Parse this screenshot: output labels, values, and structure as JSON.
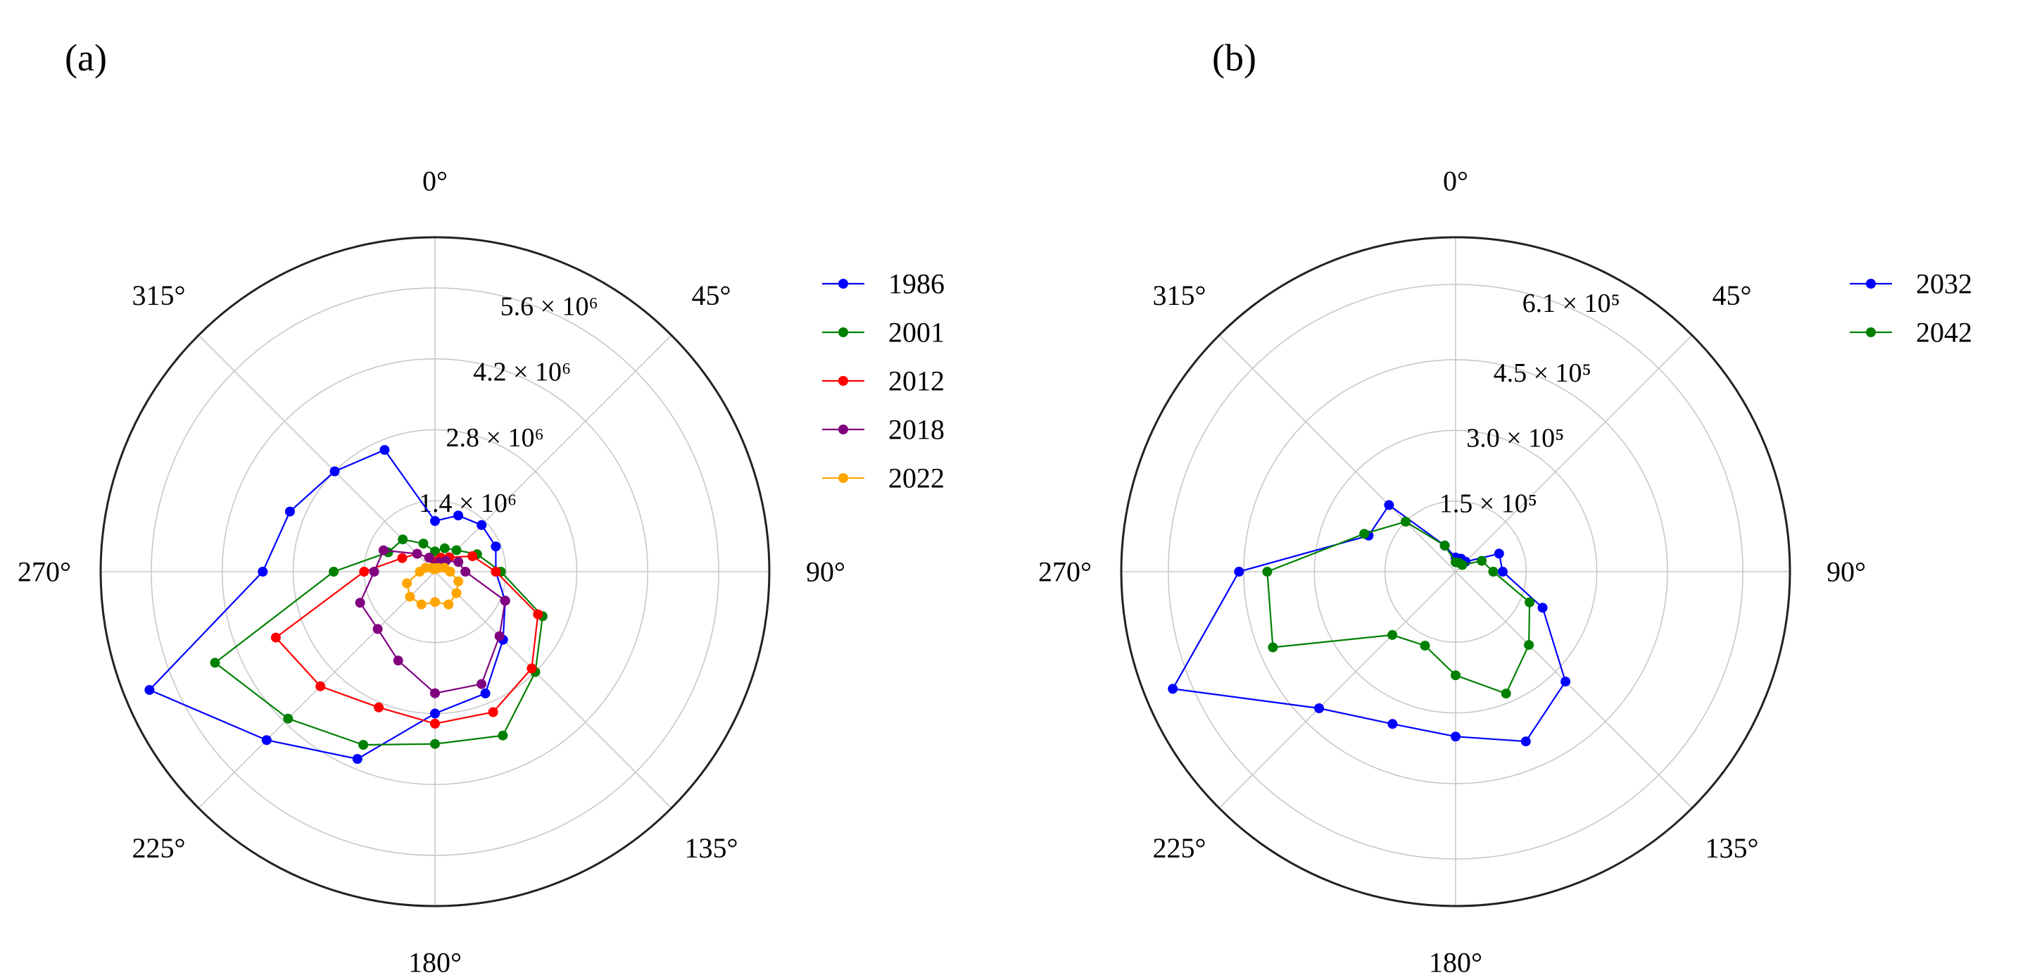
{
  "chart_data": [
    {
      "type": "polar-line",
      "panel_label": "(a)",
      "title": "",
      "angle_labels": [
        "0°",
        "45°",
        "90°",
        "135°",
        "180°",
        "225°",
        "270°",
        "315°"
      ],
      "angle_values": [
        0,
        45,
        90,
        135,
        180,
        225,
        270,
        315
      ],
      "radial_ticks": [
        {
          "value": 1.4,
          "label": "1.4 × 10⁶"
        },
        {
          "value": 2.8,
          "label": "2.8 × 10⁶"
        },
        {
          "value": 4.2,
          "label": "4.2 × 10⁶"
        },
        {
          "value": 5.6,
          "label": "5.6 × 10⁶"
        }
      ],
      "radial_unit": "× 10⁶",
      "rlim": [
        0,
        6.6
      ],
      "direction": "clockwise",
      "zero_location": "top",
      "legend_position": "right",
      "series": [
        {
          "name": "1986",
          "color": "#0000ff",
          "points": [
            [
              0,
              1.0
            ],
            [
              22.5,
              1.2
            ],
            [
              45,
              1.3
            ],
            [
              67.5,
              1.3
            ],
            [
              90,
              1.2
            ],
            [
              112.5,
              1.5
            ],
            [
              135,
              1.9
            ],
            [
              157.5,
              2.6
            ],
            [
              180,
              2.8
            ],
            [
              202.5,
              4.0
            ],
            [
              225,
              4.7
            ],
            [
              247.5,
              6.1
            ],
            [
              270,
              3.4
            ],
            [
              292.5,
              3.1
            ],
            [
              315,
              2.8
            ],
            [
              337.5,
              2.6
            ]
          ]
        },
        {
          "name": "2001",
          "color": "#008000",
          "points": [
            [
              0,
              0.4
            ],
            [
              22.5,
              0.5
            ],
            [
              45,
              0.6
            ],
            [
              67.5,
              0.9
            ],
            [
              90,
              1.3
            ],
            [
              112.5,
              2.3
            ],
            [
              135,
              2.8
            ],
            [
              157.5,
              3.5
            ],
            [
              180,
              3.4
            ],
            [
              202.5,
              3.7
            ],
            [
              225,
              4.1
            ],
            [
              247.5,
              4.7
            ],
            [
              270,
              2.0
            ],
            [
              292.5,
              1.0
            ],
            [
              315,
              0.9
            ],
            [
              337.5,
              0.6
            ]
          ]
        },
        {
          "name": "2012",
          "color": "#ff0000",
          "points": [
            [
              0,
              0.2
            ],
            [
              22.5,
              0.3
            ],
            [
              45,
              0.4
            ],
            [
              67.5,
              0.8
            ],
            [
              90,
              1.2
            ],
            [
              112.5,
              2.2
            ],
            [
              135,
              2.7
            ],
            [
              157.5,
              3.0
            ],
            [
              180,
              3.0
            ],
            [
              202.5,
              2.9
            ],
            [
              225,
              3.2
            ],
            [
              247.5,
              3.4
            ],
            [
              270,
              1.4
            ],
            [
              292.5,
              0.7
            ],
            [
              315,
              0.5
            ],
            [
              337.5,
              0.3
            ]
          ]
        },
        {
          "name": "2018",
          "color": "#800080",
          "points": [
            [
              0,
              0.1
            ],
            [
              22.5,
              0.2
            ],
            [
              45,
              0.3
            ],
            [
              67.5,
              0.5
            ],
            [
              90,
              0.6
            ],
            [
              112.5,
              1.5
            ],
            [
              135,
              1.8
            ],
            [
              157.5,
              2.4
            ],
            [
              180,
              2.4
            ],
            [
              202.5,
              1.9
            ],
            [
              225,
              1.6
            ],
            [
              247.5,
              1.6
            ],
            [
              270,
              1.2
            ],
            [
              292.5,
              1.1
            ],
            [
              315,
              0.5
            ],
            [
              337.5,
              0.3
            ]
          ]
        },
        {
          "name": "2022",
          "color": "#ffa500",
          "points": [
            [
              0,
              0.05
            ],
            [
              22.5,
              0.08
            ],
            [
              45,
              0.1
            ],
            [
              67.5,
              0.2
            ],
            [
              90,
              0.3
            ],
            [
              112.5,
              0.5
            ],
            [
              135,
              0.6
            ],
            [
              157.5,
              0.7
            ],
            [
              180,
              0.6
            ],
            [
              202.5,
              0.7
            ],
            [
              225,
              0.7
            ],
            [
              247.5,
              0.6
            ],
            [
              270,
              0.3
            ],
            [
              292.5,
              0.2
            ],
            [
              315,
              0.1
            ],
            [
              337.5,
              0.05
            ]
          ]
        }
      ]
    },
    {
      "type": "polar-line",
      "panel_label": "(b)",
      "title": "",
      "angle_labels": [
        "0°",
        "45°",
        "90°",
        "135°",
        "180°",
        "225°",
        "270°",
        "315°"
      ],
      "angle_values": [
        0,
        45,
        90,
        135,
        180,
        225,
        270,
        315
      ],
      "radial_ticks": [
        {
          "value": 1.5,
          "label": "1.5 × 10⁵"
        },
        {
          "value": 3.0,
          "label": "3.0 × 10⁵"
        },
        {
          "value": 4.5,
          "label": "4.5 × 10⁵"
        },
        {
          "value": 6.1,
          "label": "6.1 × 10⁵"
        }
      ],
      "radial_unit": "× 10⁵",
      "rlim": [
        0,
        7.1
      ],
      "direction": "clockwise",
      "zero_location": "top",
      "legend_position": "right",
      "series": [
        {
          "name": "2032",
          "color": "#0000ff",
          "points": [
            [
              0,
              0.3
            ],
            [
              22.5,
              0.3
            ],
            [
              45,
              0.3
            ],
            [
              67.5,
              1.0
            ],
            [
              90,
              1.0
            ],
            [
              112.5,
              2.0
            ],
            [
              135,
              3.3
            ],
            [
              157.5,
              3.9
            ],
            [
              180,
              3.5
            ],
            [
              202.5,
              3.5
            ],
            [
              225,
              4.1
            ],
            [
              247.5,
              6.5
            ],
            [
              270,
              4.6
            ],
            [
              292.5,
              2.0
            ],
            [
              315,
              2.0
            ],
            [
              337.5,
              0.6
            ]
          ]
        },
        {
          "name": "2042",
          "color": "#008000",
          "points": [
            [
              0,
              0.2
            ],
            [
              22.5,
              0.2
            ],
            [
              45,
              0.2
            ],
            [
              67.5,
              0.6
            ],
            [
              90,
              0.8
            ],
            [
              112.5,
              1.7
            ],
            [
              135,
              2.2
            ],
            [
              157.5,
              2.8
            ],
            [
              180,
              2.2
            ],
            [
              202.5,
              1.7
            ],
            [
              225,
              1.9
            ],
            [
              247.5,
              4.2
            ],
            [
              270,
              4.0
            ],
            [
              292.5,
              2.1
            ],
            [
              315,
              1.5
            ],
            [
              337.5,
              0.6
            ]
          ]
        }
      ]
    }
  ]
}
